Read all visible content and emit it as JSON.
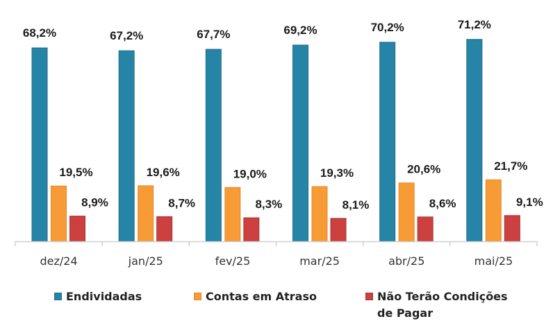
{
  "chart_data": {
    "type": "bar",
    "title": "",
    "xlabel": "",
    "ylabel": "",
    "ylim": [
      0,
      75
    ],
    "grid": false,
    "legend_position": "bottom",
    "categories": [
      "dez/24",
      "jan/25",
      "fev/25",
      "mar/25",
      "abr/25",
      "mai/25"
    ],
    "series": [
      {
        "name": "Endividadas",
        "color": "#2684A6",
        "values": [
          68.2,
          67.2,
          67.7,
          69.2,
          70.2,
          71.2
        ],
        "labels": [
          "68,2%",
          "67,2%",
          "67,7%",
          "69,2%",
          "70,2%",
          "71,2%"
        ]
      },
      {
        "name": "Contas em Atraso",
        "color": "#F79B36",
        "values": [
          19.5,
          19.6,
          19.0,
          19.3,
          20.6,
          21.7
        ],
        "labels": [
          "19,5%",
          "19,6%",
          "19,0%",
          "19,3%",
          "20,6%",
          "21,7%"
        ]
      },
      {
        "name": "Não Terão Condições de Pagar",
        "color": "#CC4040",
        "values": [
          8.9,
          8.7,
          8.3,
          8.1,
          8.6,
          9.1
        ],
        "labels": [
          "8,9%",
          "8,7%",
          "8,3%",
          "8,1%",
          "8,6%",
          "9,1%"
        ]
      }
    ]
  },
  "legend": {
    "items": [
      {
        "line1": "Endividadas",
        "line2": ""
      },
      {
        "line1": "Contas em Atraso",
        "line2": ""
      },
      {
        "line1": "Não Terão Condições",
        "line2": "de Pagar"
      }
    ]
  }
}
